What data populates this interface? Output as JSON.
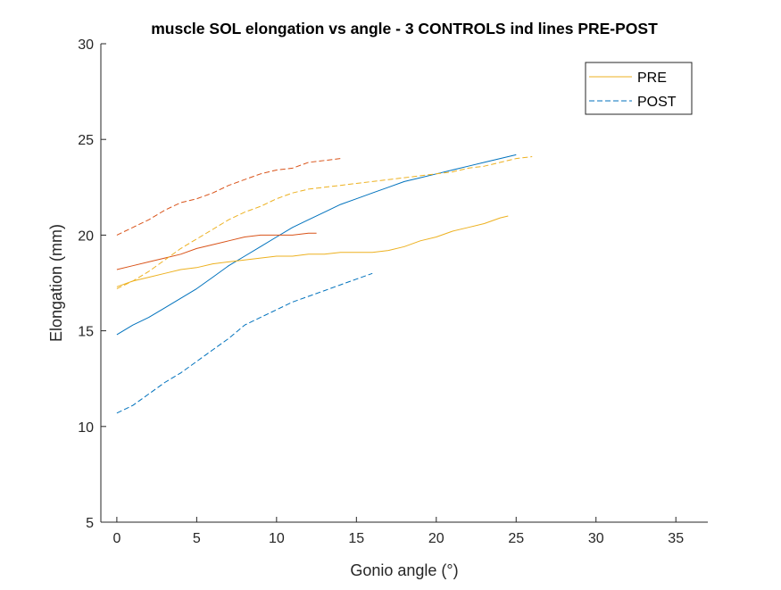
{
  "chart_data": {
    "type": "line",
    "title": "muscle SOL elongation vs angle - 3 CONTROLS ind lines PRE-POST",
    "xlabel": "Gonio angle (°)",
    "ylabel": "Elongation (mm)",
    "xlim": [
      -1,
      37
    ],
    "ylim": [
      5,
      30
    ],
    "xticks": [
      0,
      5,
      10,
      15,
      20,
      25,
      30,
      35
    ],
    "yticks": [
      5,
      10,
      15,
      20,
      25,
      30
    ],
    "xtick_labels": [
      "0",
      "5",
      "10",
      "15",
      "20",
      "25",
      "30",
      "35"
    ],
    "ytick_labels": [
      "5",
      "10",
      "15",
      "20",
      "25",
      "30"
    ],
    "grid": false,
    "legend_position": "top-right",
    "legend": [
      {
        "label": "PRE",
        "style": "solid",
        "color": "#EDB120"
      },
      {
        "label": "POST",
        "style": "dashed",
        "color": "#0072BD"
      }
    ],
    "series": [
      {
        "condition": "PRE",
        "subject": 1,
        "color": "#0072BD",
        "dash": "solid",
        "x": [
          0,
          1,
          2,
          3,
          4,
          5,
          6,
          7,
          8,
          9,
          10,
          11,
          12,
          13,
          14,
          15,
          16,
          17,
          18,
          19,
          20,
          21,
          22,
          23,
          24,
          25
        ],
        "y": [
          14.8,
          15.3,
          15.7,
          16.2,
          16.7,
          17.2,
          17.8,
          18.4,
          18.9,
          19.4,
          19.9,
          20.4,
          20.8,
          21.2,
          21.6,
          21.9,
          22.2,
          22.5,
          22.8,
          23.0,
          23.2,
          23.4,
          23.6,
          23.8,
          24.0,
          24.2
        ]
      },
      {
        "condition": "PRE",
        "subject": 2,
        "color": "#D95319",
        "dash": "solid",
        "x": [
          0,
          1,
          2,
          3,
          4,
          5,
          6,
          7,
          8,
          9,
          10,
          11,
          12,
          12.5
        ],
        "y": [
          18.2,
          18.4,
          18.6,
          18.8,
          19.0,
          19.3,
          19.5,
          19.7,
          19.9,
          20.0,
          20.0,
          20.0,
          20.1,
          20.1
        ]
      },
      {
        "condition": "PRE",
        "subject": 3,
        "color": "#EDB120",
        "dash": "solid",
        "x": [
          0,
          1,
          2,
          3,
          4,
          5,
          6,
          7,
          8,
          9,
          10,
          11,
          12,
          13,
          14,
          15,
          16,
          17,
          18,
          19,
          20,
          21,
          22,
          23,
          24,
          24.5
        ],
        "y": [
          17.3,
          17.6,
          17.8,
          18.0,
          18.2,
          18.3,
          18.5,
          18.6,
          18.7,
          18.8,
          18.9,
          18.9,
          19.0,
          19.0,
          19.1,
          19.1,
          19.1,
          19.2,
          19.4,
          19.7,
          19.9,
          20.2,
          20.4,
          20.6,
          20.9,
          21.0
        ]
      },
      {
        "condition": "POST",
        "subject": 1,
        "color": "#0072BD",
        "dash": "dashed",
        "x": [
          0,
          1,
          2,
          3,
          4,
          5,
          6,
          7,
          8,
          9,
          10,
          11,
          12,
          13,
          14,
          15,
          16
        ],
        "y": [
          10.7,
          11.1,
          11.7,
          12.3,
          12.8,
          13.4,
          14.0,
          14.6,
          15.3,
          15.7,
          16.1,
          16.5,
          16.8,
          17.1,
          17.4,
          17.7,
          18.0
        ]
      },
      {
        "condition": "POST",
        "subject": 2,
        "color": "#D95319",
        "dash": "dashed",
        "x": [
          0,
          1,
          2,
          3,
          4,
          5,
          6,
          7,
          8,
          9,
          10,
          11,
          12,
          13,
          14
        ],
        "y": [
          20.0,
          20.4,
          20.8,
          21.3,
          21.7,
          21.9,
          22.2,
          22.6,
          22.9,
          23.2,
          23.4,
          23.5,
          23.8,
          23.9,
          24.0
        ]
      },
      {
        "condition": "POST",
        "subject": 3,
        "color": "#EDB120",
        "dash": "dashed",
        "x": [
          0,
          1,
          2,
          3,
          4,
          5,
          6,
          7,
          8,
          9,
          10,
          11,
          12,
          13,
          14,
          15,
          16,
          17,
          18,
          19,
          20,
          21,
          22,
          23,
          24,
          25,
          26
        ],
        "y": [
          17.2,
          17.6,
          18.1,
          18.7,
          19.3,
          19.8,
          20.3,
          20.8,
          21.2,
          21.5,
          21.9,
          22.2,
          22.4,
          22.5,
          22.6,
          22.7,
          22.8,
          22.9,
          23.0,
          23.1,
          23.2,
          23.3,
          23.5,
          23.6,
          23.8,
          24.0,
          24.1
        ]
      }
    ]
  }
}
